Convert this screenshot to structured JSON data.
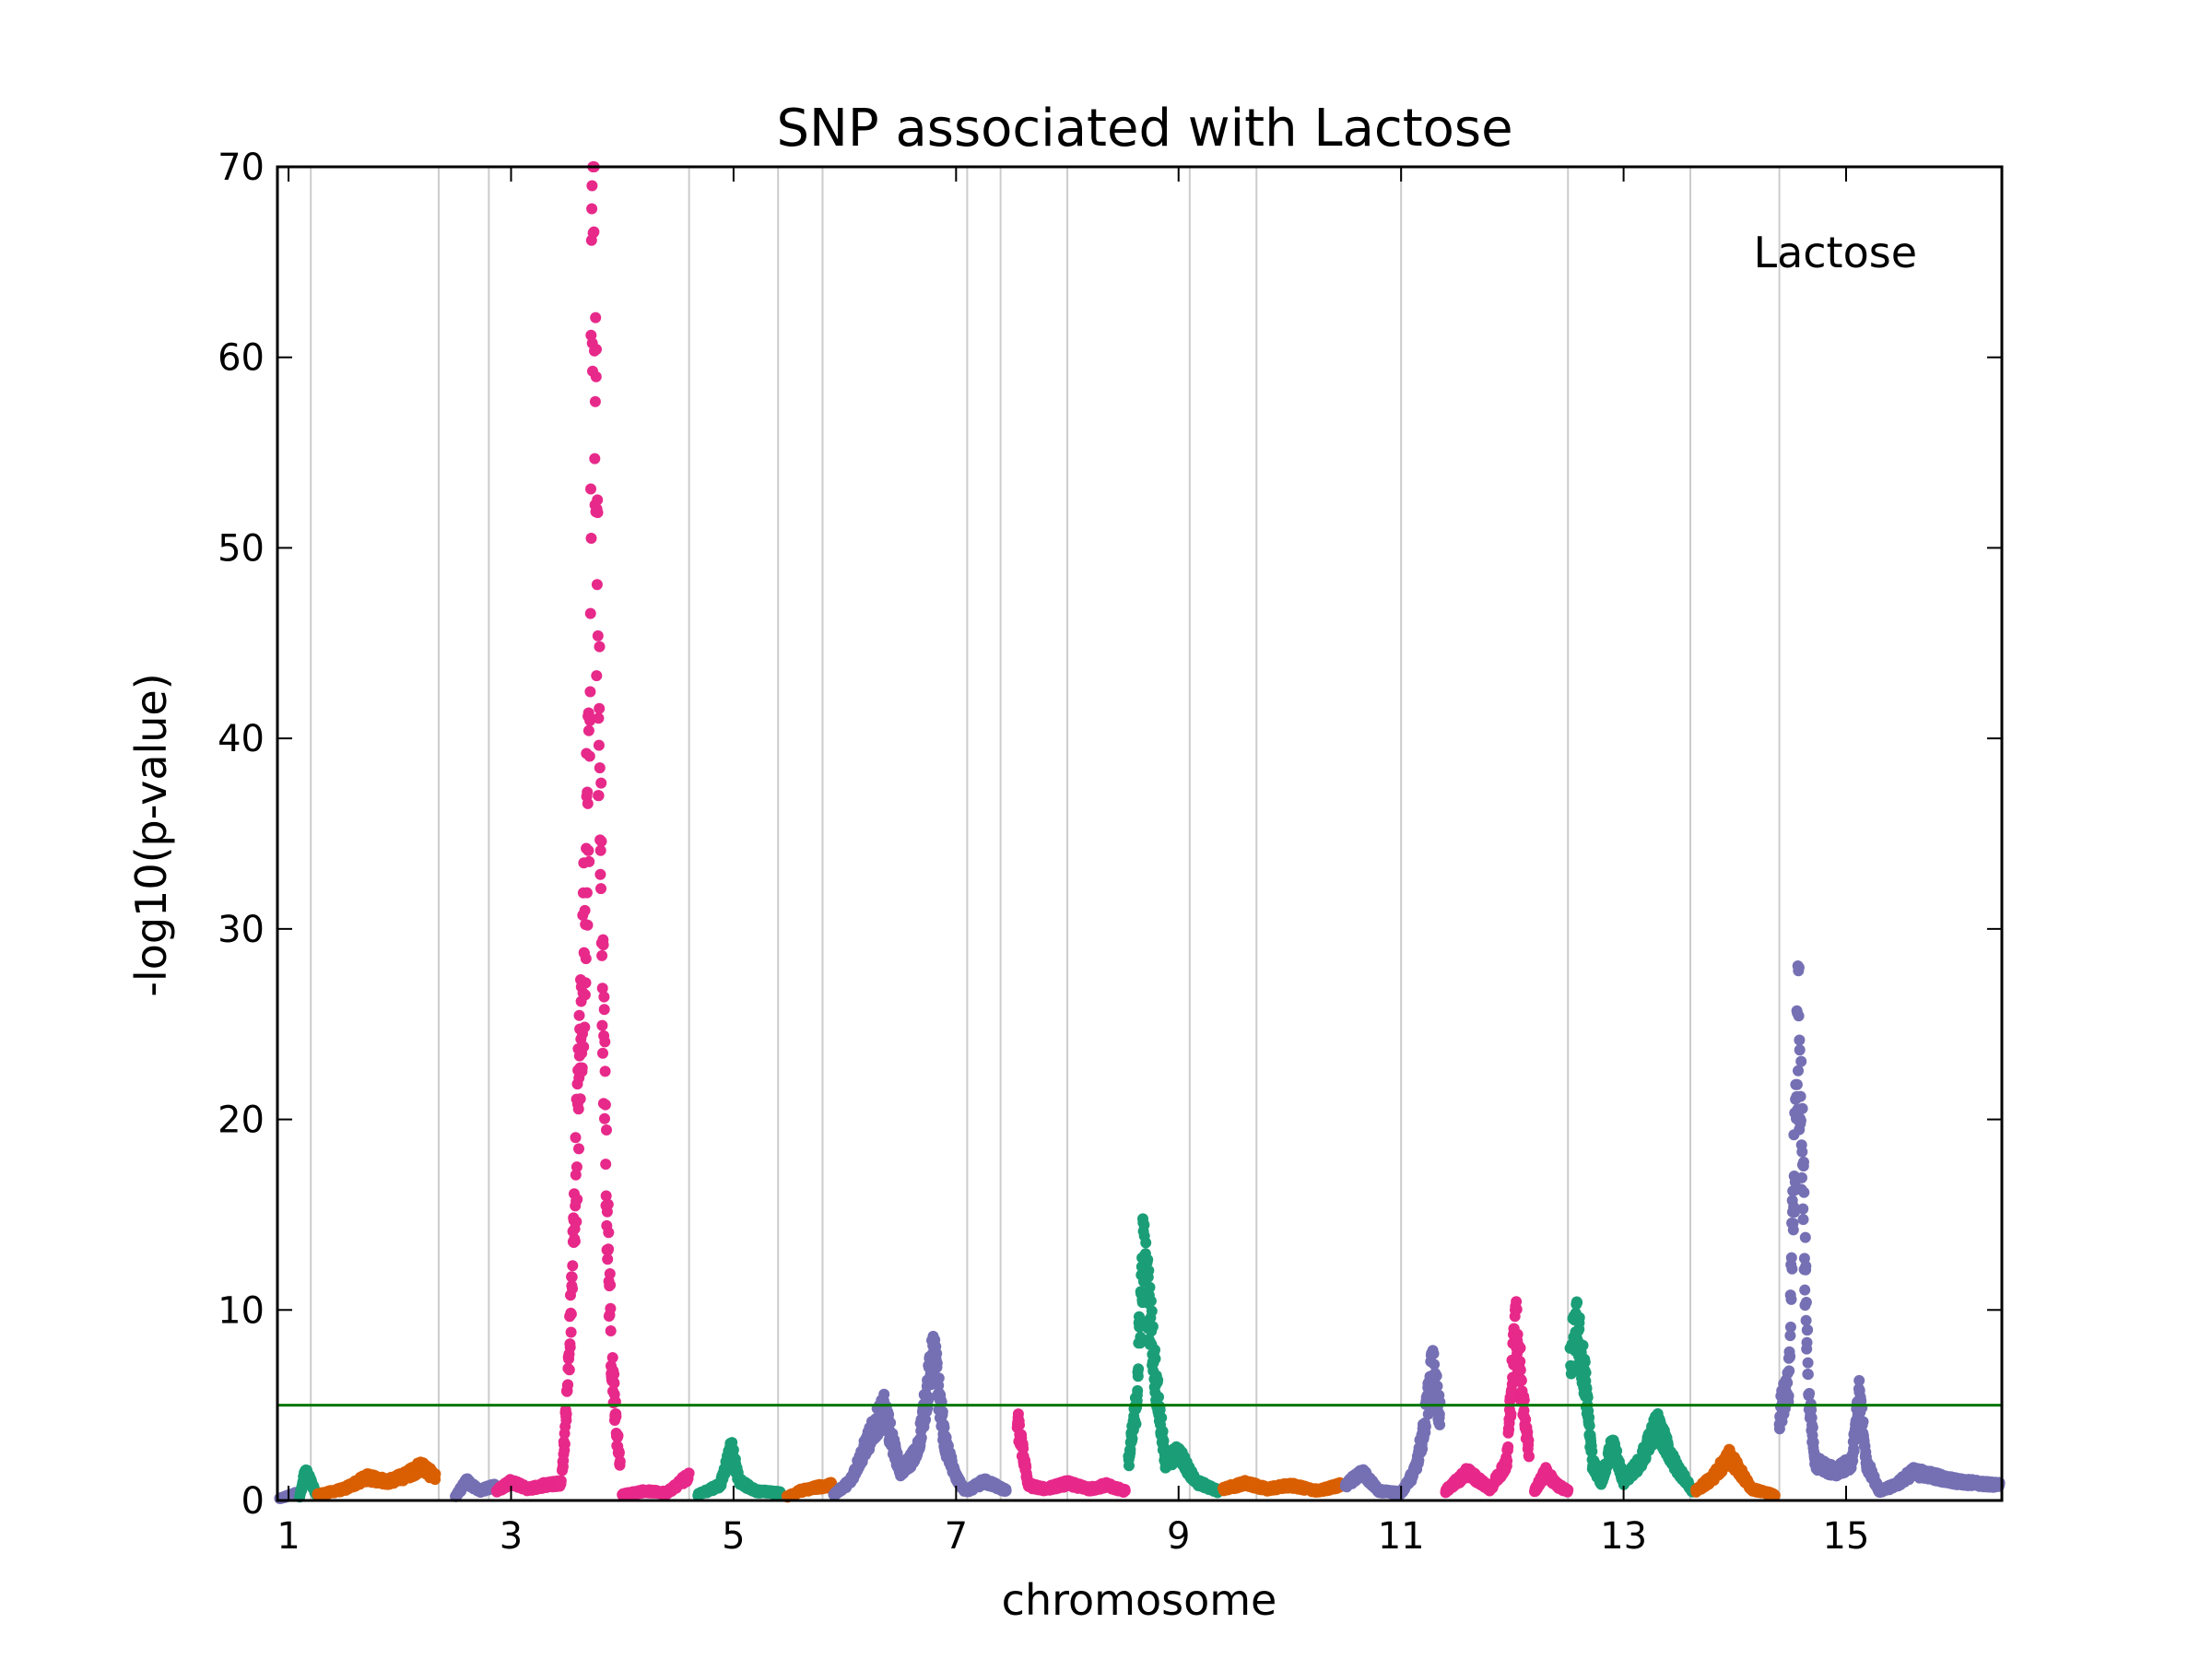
{
  "chart_data": {
    "type": "scatter",
    "title": "SNP associated with Lactose",
    "xlabel": "chromosome",
    "ylabel": "-log10(p-value)",
    "legend": {
      "text": "Lactose",
      "placement": "top-right"
    },
    "xlim": [
      0.9,
      16.4
    ],
    "ylim": [
      0,
      70
    ],
    "x_ticks": [
      1,
      3,
      5,
      7,
      9,
      11,
      13,
      15
    ],
    "y_ticks": [
      0,
      10,
      20,
      30,
      40,
      50,
      60,
      70
    ],
    "chromosome_boundaries": [
      1.2,
      2.35,
      2.8,
      4.6,
      5.4,
      5.8,
      7.1,
      7.4,
      8.0,
      9.1,
      9.7,
      11.0,
      12.5,
      13.6,
      14.4
    ],
    "threshold": {
      "value": 5,
      "color": "#007700"
    },
    "colors": {
      "teal": "#1b9e77",
      "orange": "#d95f02",
      "purple": "#7570b3",
      "pink": "#e7298a",
      "grid": "#cccccc"
    },
    "segments": [
      {
        "start": 0.92,
        "end": 1.08,
        "color": "purple",
        "profile": [
          [
            0.92,
            0.1
          ],
          [
            1.08,
            0.4
          ]
        ]
      },
      {
        "start": 1.1,
        "end": 1.25,
        "color": "teal",
        "profile": [
          [
            1.1,
            0.2
          ],
          [
            1.15,
            1.5
          ],
          [
            1.2,
            1.0
          ],
          [
            1.25,
            0.3
          ]
        ]
      },
      {
        "start": 1.26,
        "end": 2.32,
        "color": "orange",
        "profile": [
          [
            1.26,
            0.3
          ],
          [
            1.5,
            0.6
          ],
          [
            1.7,
            1.2
          ],
          [
            1.9,
            1.0
          ],
          [
            2.05,
            1.3
          ],
          [
            2.2,
            1.8
          ],
          [
            2.32,
            1.2
          ]
        ]
      },
      {
        "start": 2.5,
        "end": 2.85,
        "color": "purple",
        "profile": [
          [
            2.5,
            0.2
          ],
          [
            2.6,
            1.0
          ],
          [
            2.72,
            0.5
          ],
          [
            2.85,
            0.8
          ]
        ]
      },
      {
        "start": 2.87,
        "end": 3.45,
        "color": "pink",
        "profile": [
          [
            2.87,
            0.5
          ],
          [
            3.0,
            1.0
          ],
          [
            3.15,
            0.6
          ],
          [
            3.3,
            0.8
          ],
          [
            3.45,
            0.9
          ]
        ]
      },
      {
        "start": 3.46,
        "end": 3.98,
        "color": "pink",
        "profile": [
          [
            3.46,
            1.5
          ],
          [
            3.5,
            5.0
          ],
          [
            3.54,
            10.0
          ],
          [
            3.6,
            20.0
          ],
          [
            3.66,
            30.0
          ],
          [
            3.7,
            38.0
          ],
          [
            3.74,
            69.5
          ],
          [
            3.78,
            45.0
          ],
          [
            3.82,
            28.0
          ],
          [
            3.86,
            16.0
          ],
          [
            3.9,
            8.0
          ],
          [
            3.95,
            3.5
          ],
          [
            3.98,
            2.0
          ]
        ]
      },
      {
        "start": 4.0,
        "end": 4.6,
        "color": "pink",
        "profile": [
          [
            4.0,
            0.3
          ],
          [
            4.2,
            0.5
          ],
          [
            4.4,
            0.4
          ],
          [
            4.6,
            1.3
          ]
        ]
      },
      {
        "start": 4.68,
        "end": 5.42,
        "color": "teal",
        "profile": [
          [
            4.68,
            0.3
          ],
          [
            4.88,
            0.8
          ],
          [
            4.98,
            2.8
          ],
          [
            5.05,
            1.0
          ],
          [
            5.2,
            0.5
          ],
          [
            5.42,
            0.4
          ]
        ]
      },
      {
        "start": 5.48,
        "end": 5.88,
        "color": "orange",
        "profile": [
          [
            5.48,
            0.2
          ],
          [
            5.6,
            0.5
          ],
          [
            5.75,
            0.7
          ],
          [
            5.88,
            0.8
          ]
        ]
      },
      {
        "start": 5.9,
        "end": 7.08,
        "color": "purple",
        "profile": [
          [
            5.9,
            0.3
          ],
          [
            6.05,
            1.0
          ],
          [
            6.2,
            3.0
          ],
          [
            6.35,
            4.8
          ],
          [
            6.5,
            1.5
          ],
          [
            6.65,
            2.5
          ],
          [
            6.8,
            7.8
          ],
          [
            6.9,
            3.0
          ],
          [
            7.0,
            1.2
          ],
          [
            7.08,
            0.5
          ]
        ]
      },
      {
        "start": 7.1,
        "end": 7.45,
        "color": "purple",
        "profile": [
          [
            7.1,
            0.5
          ],
          [
            7.25,
            1.0
          ],
          [
            7.35,
            0.8
          ],
          [
            7.45,
            0.5
          ]
        ]
      },
      {
        "start": 7.55,
        "end": 8.52,
        "color": "pink",
        "profile": [
          [
            7.55,
            4.2
          ],
          [
            7.6,
            2.5
          ],
          [
            7.65,
            0.8
          ],
          [
            7.8,
            0.6
          ],
          [
            8.0,
            0.9
          ],
          [
            8.2,
            0.6
          ],
          [
            8.35,
            0.8
          ],
          [
            8.52,
            0.5
          ]
        ]
      },
      {
        "start": 8.55,
        "end": 9.35,
        "color": "teal",
        "profile": [
          [
            8.55,
            2.0
          ],
          [
            8.62,
            5.0
          ],
          [
            8.68,
            13.0
          ],
          [
            8.74,
            10.0
          ],
          [
            8.8,
            6.0
          ],
          [
            8.88,
            2.0
          ],
          [
            9.0,
            2.5
          ],
          [
            9.15,
            1.0
          ],
          [
            9.35,
            0.5
          ]
        ]
      },
      {
        "start": 9.4,
        "end": 10.45,
        "color": "orange",
        "profile": [
          [
            9.4,
            0.6
          ],
          [
            9.6,
            0.9
          ],
          [
            9.8,
            0.6
          ],
          [
            10.0,
            0.8
          ],
          [
            10.25,
            0.5
          ],
          [
            10.45,
            0.8
          ]
        ]
      },
      {
        "start": 10.5,
        "end": 11.35,
        "color": "purple",
        "profile": [
          [
            10.5,
            0.8
          ],
          [
            10.65,
            1.5
          ],
          [
            10.8,
            0.5
          ],
          [
            11.0,
            0.4
          ],
          [
            11.12,
            1.5
          ],
          [
            11.2,
            3.5
          ],
          [
            11.28,
            7.0
          ],
          [
            11.35,
            4.5
          ]
        ]
      },
      {
        "start": 11.4,
        "end": 12.15,
        "color": "pink",
        "profile": [
          [
            11.4,
            0.5
          ],
          [
            11.6,
            1.5
          ],
          [
            11.8,
            0.6
          ],
          [
            11.95,
            2.0
          ],
          [
            12.03,
            9.5
          ],
          [
            12.1,
            5.0
          ],
          [
            12.15,
            2.5
          ]
        ]
      },
      {
        "start": 12.2,
        "end": 12.5,
        "color": "pink",
        "profile": [
          [
            12.2,
            0.5
          ],
          [
            12.3,
            1.5
          ],
          [
            12.4,
            0.8
          ],
          [
            12.5,
            0.5
          ]
        ]
      },
      {
        "start": 12.52,
        "end": 13.62,
        "color": "teal",
        "profile": [
          [
            12.52,
            7.5
          ],
          [
            12.58,
            9.0
          ],
          [
            12.65,
            6.5
          ],
          [
            12.72,
            2.0
          ],
          [
            12.8,
            1.0
          ],
          [
            12.9,
            3.0
          ],
          [
            13.0,
            1.0
          ],
          [
            13.15,
            2.0
          ],
          [
            13.3,
            4.0
          ],
          [
            13.45,
            2.0
          ],
          [
            13.62,
            0.5
          ]
        ]
      },
      {
        "start": 13.65,
        "end": 14.36,
        "color": "orange",
        "profile": [
          [
            13.65,
            0.5
          ],
          [
            13.8,
            1.2
          ],
          [
            13.95,
            2.3
          ],
          [
            14.05,
            1.5
          ],
          [
            14.15,
            0.6
          ],
          [
            14.36,
            0.3
          ]
        ]
      },
      {
        "start": 14.4,
        "end": 16.38,
        "color": "purple",
        "profile": [
          [
            14.4,
            4.5
          ],
          [
            14.48,
            6.0
          ],
          [
            14.52,
            14.0
          ],
          [
            14.57,
            25.0
          ],
          [
            14.62,
            15.0
          ],
          [
            14.66,
            6.0
          ],
          [
            14.72,
            2.0
          ],
          [
            14.9,
            1.5
          ],
          [
            15.05,
            2.0
          ],
          [
            15.12,
            5.5
          ],
          [
            15.18,
            2.0
          ],
          [
            15.3,
            0.5
          ],
          [
            15.45,
            0.8
          ],
          [
            15.6,
            1.5
          ],
          [
            16.0,
            1.0
          ],
          [
            16.38,
            0.8
          ]
        ]
      }
    ]
  }
}
